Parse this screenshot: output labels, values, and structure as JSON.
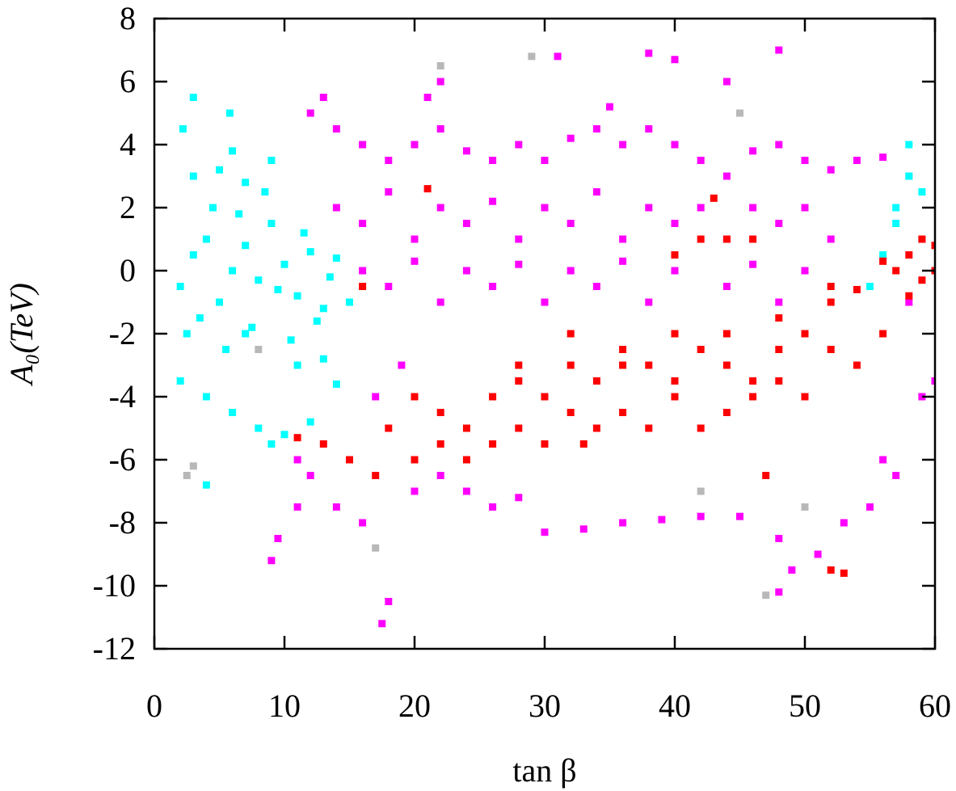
{
  "chart_data": {
    "type": "scatter",
    "xlabel": "tan β",
    "ylabel": "A₀(TeV)",
    "xlim": [
      0,
      60
    ],
    "ylim": [
      -12,
      8
    ],
    "xticks": [
      0,
      10,
      20,
      30,
      40,
      50,
      60
    ],
    "yticks": [
      -12,
      -10,
      -8,
      -6,
      -4,
      -2,
      0,
      2,
      4,
      6,
      8
    ],
    "series": [
      {
        "color": "#b8b8b8",
        "x": [
          3,
          8,
          22,
          29,
          45,
          42,
          50,
          58,
          59,
          17,
          47,
          2.5
        ],
        "values": [
          -6.2,
          -2.5,
          6.5,
          6.8,
          5,
          -7,
          -7.5,
          3,
          1,
          -8.8,
          -10.3,
          -6.5
        ]
      },
      {
        "color": "#00ffff",
        "x": [
          2,
          3,
          4,
          5,
          6,
          7,
          8,
          9,
          10,
          11,
          12,
          13,
          14,
          2.5,
          3.5,
          4.5,
          5.5,
          6.5,
          7.5,
          8.5,
          9.5,
          10.5,
          11.5,
          12.5,
          13.5,
          3,
          5,
          7,
          9,
          11,
          13,
          2,
          4,
          6,
          8,
          10,
          12,
          14,
          3,
          6,
          9,
          4,
          7,
          56,
          57,
          58,
          59,
          55,
          57,
          58,
          2.2,
          5.8,
          15
        ],
        "values": [
          -0.5,
          0.5,
          1,
          -1,
          0,
          0.8,
          -0.3,
          1.5,
          0.2,
          -0.8,
          0.6,
          -1.2,
          0.4,
          -2,
          -1.5,
          2,
          -2.5,
          1.8,
          -1.8,
          2.5,
          -0.6,
          -2.2,
          1.2,
          -1.6,
          -0.2,
          3,
          3.2,
          2.8,
          3.5,
          -3,
          -2.8,
          -3.5,
          -4,
          -4.5,
          -5,
          -5.2,
          -4.8,
          -3.6,
          5.5,
          3.8,
          -5.5,
          -6.8,
          -2,
          0.5,
          2,
          3,
          2.5,
          -0.5,
          1.5,
          4,
          4.5,
          5,
          -1
        ]
      },
      {
        "color": "#ff00ff",
        "x": [
          12,
          14,
          16,
          18,
          20,
          22,
          24,
          26,
          28,
          30,
          32,
          34,
          36,
          38,
          40,
          42,
          44,
          46,
          48,
          50,
          52,
          54,
          56,
          14,
          16,
          18,
          20,
          22,
          24,
          26,
          28,
          30,
          32,
          34,
          36,
          38,
          40,
          42,
          44,
          46,
          48,
          50,
          52,
          16,
          18,
          20,
          22,
          24,
          26,
          28,
          30,
          32,
          34,
          36,
          38,
          40,
          44,
          46,
          48,
          50,
          11,
          11,
          9.5,
          9,
          12,
          14,
          16,
          18,
          17.5,
          20,
          22,
          24,
          26,
          28,
          30,
          33,
          36,
          39,
          42,
          45,
          48,
          49,
          48,
          51,
          53,
          55,
          57,
          59,
          60,
          58,
          13,
          17,
          19,
          40,
          38,
          31,
          22,
          21,
          44,
          48,
          35,
          56
        ],
        "values": [
          5,
          4.5,
          4,
          3.5,
          4,
          4.5,
          3.8,
          3.5,
          4,
          3.5,
          4.2,
          4.5,
          4,
          4.5,
          4,
          3.5,
          3,
          3.8,
          4,
          3.5,
          3.2,
          3.5,
          3.6,
          2,
          1.5,
          2.5,
          1,
          2,
          1.5,
          2.2,
          1,
          2,
          1.5,
          2.5,
          1,
          2,
          1.5,
          2,
          1,
          2,
          1.5,
          2,
          1,
          0,
          -0.5,
          0.3,
          -1,
          0,
          -0.5,
          0.2,
          -1,
          0,
          -0.5,
          0.3,
          -1,
          0,
          -0.5,
          0.2,
          -1,
          0,
          -6,
          -7.5,
          -8.5,
          -9.2,
          -6.5,
          -7.5,
          -8,
          -10.5,
          -11.2,
          -7,
          -6.5,
          -7,
          -7.5,
          -7.2,
          -8.3,
          -8.2,
          -8,
          -7.9,
          -7.8,
          -7.8,
          -8.5,
          -9.5,
          -10.2,
          -9,
          -8,
          -7.5,
          -6.5,
          -4,
          -3.5,
          -1,
          5.5,
          -4,
          -3,
          6.7,
          6.9,
          6.8,
          6,
          5.5,
          6,
          7,
          5.2,
          -6
        ]
      },
      {
        "color": "#ff0000",
        "x": [
          11,
          13,
          15,
          17,
          18,
          20,
          22,
          24,
          26,
          28,
          30,
          32,
          34,
          36,
          38,
          40,
          42,
          44,
          46,
          48,
          50,
          52,
          54,
          56,
          20,
          22,
          24,
          26,
          28,
          30,
          32,
          34,
          36,
          38,
          40,
          42,
          44,
          46,
          48,
          50,
          28,
          32,
          36,
          40,
          44,
          48,
          52,
          57,
          58,
          59,
          60,
          58,
          56,
          60,
          59,
          42,
          44,
          46,
          40,
          54,
          52,
          52,
          53,
          21,
          43,
          16,
          47,
          33
        ],
        "values": [
          -5.3,
          -5.5,
          -6,
          -6.5,
          -5,
          -4,
          -4.5,
          -5,
          -4,
          -3.5,
          -4,
          -3,
          -3.5,
          -2.5,
          -3,
          -2,
          -2.5,
          -3,
          -3.5,
          -2.5,
          -2,
          -2.5,
          -3,
          -2,
          -6,
          -5.5,
          -6,
          -5.5,
          -5,
          -5.5,
          -4.5,
          -5,
          -4.5,
          -5,
          -4,
          -5,
          -4.5,
          -4,
          -3.5,
          -4,
          -3,
          -2,
          -3,
          -3.5,
          -2,
          -1.5,
          -1,
          0,
          0.5,
          -0.3,
          0,
          -0.8,
          0.3,
          0.8,
          1,
          1,
          1,
          1,
          0.5,
          -0.6,
          -0.5,
          -9.5,
          -9.6,
          2.6,
          2.3,
          -0.5,
          -6.5,
          -5.5
        ]
      }
    ]
  }
}
